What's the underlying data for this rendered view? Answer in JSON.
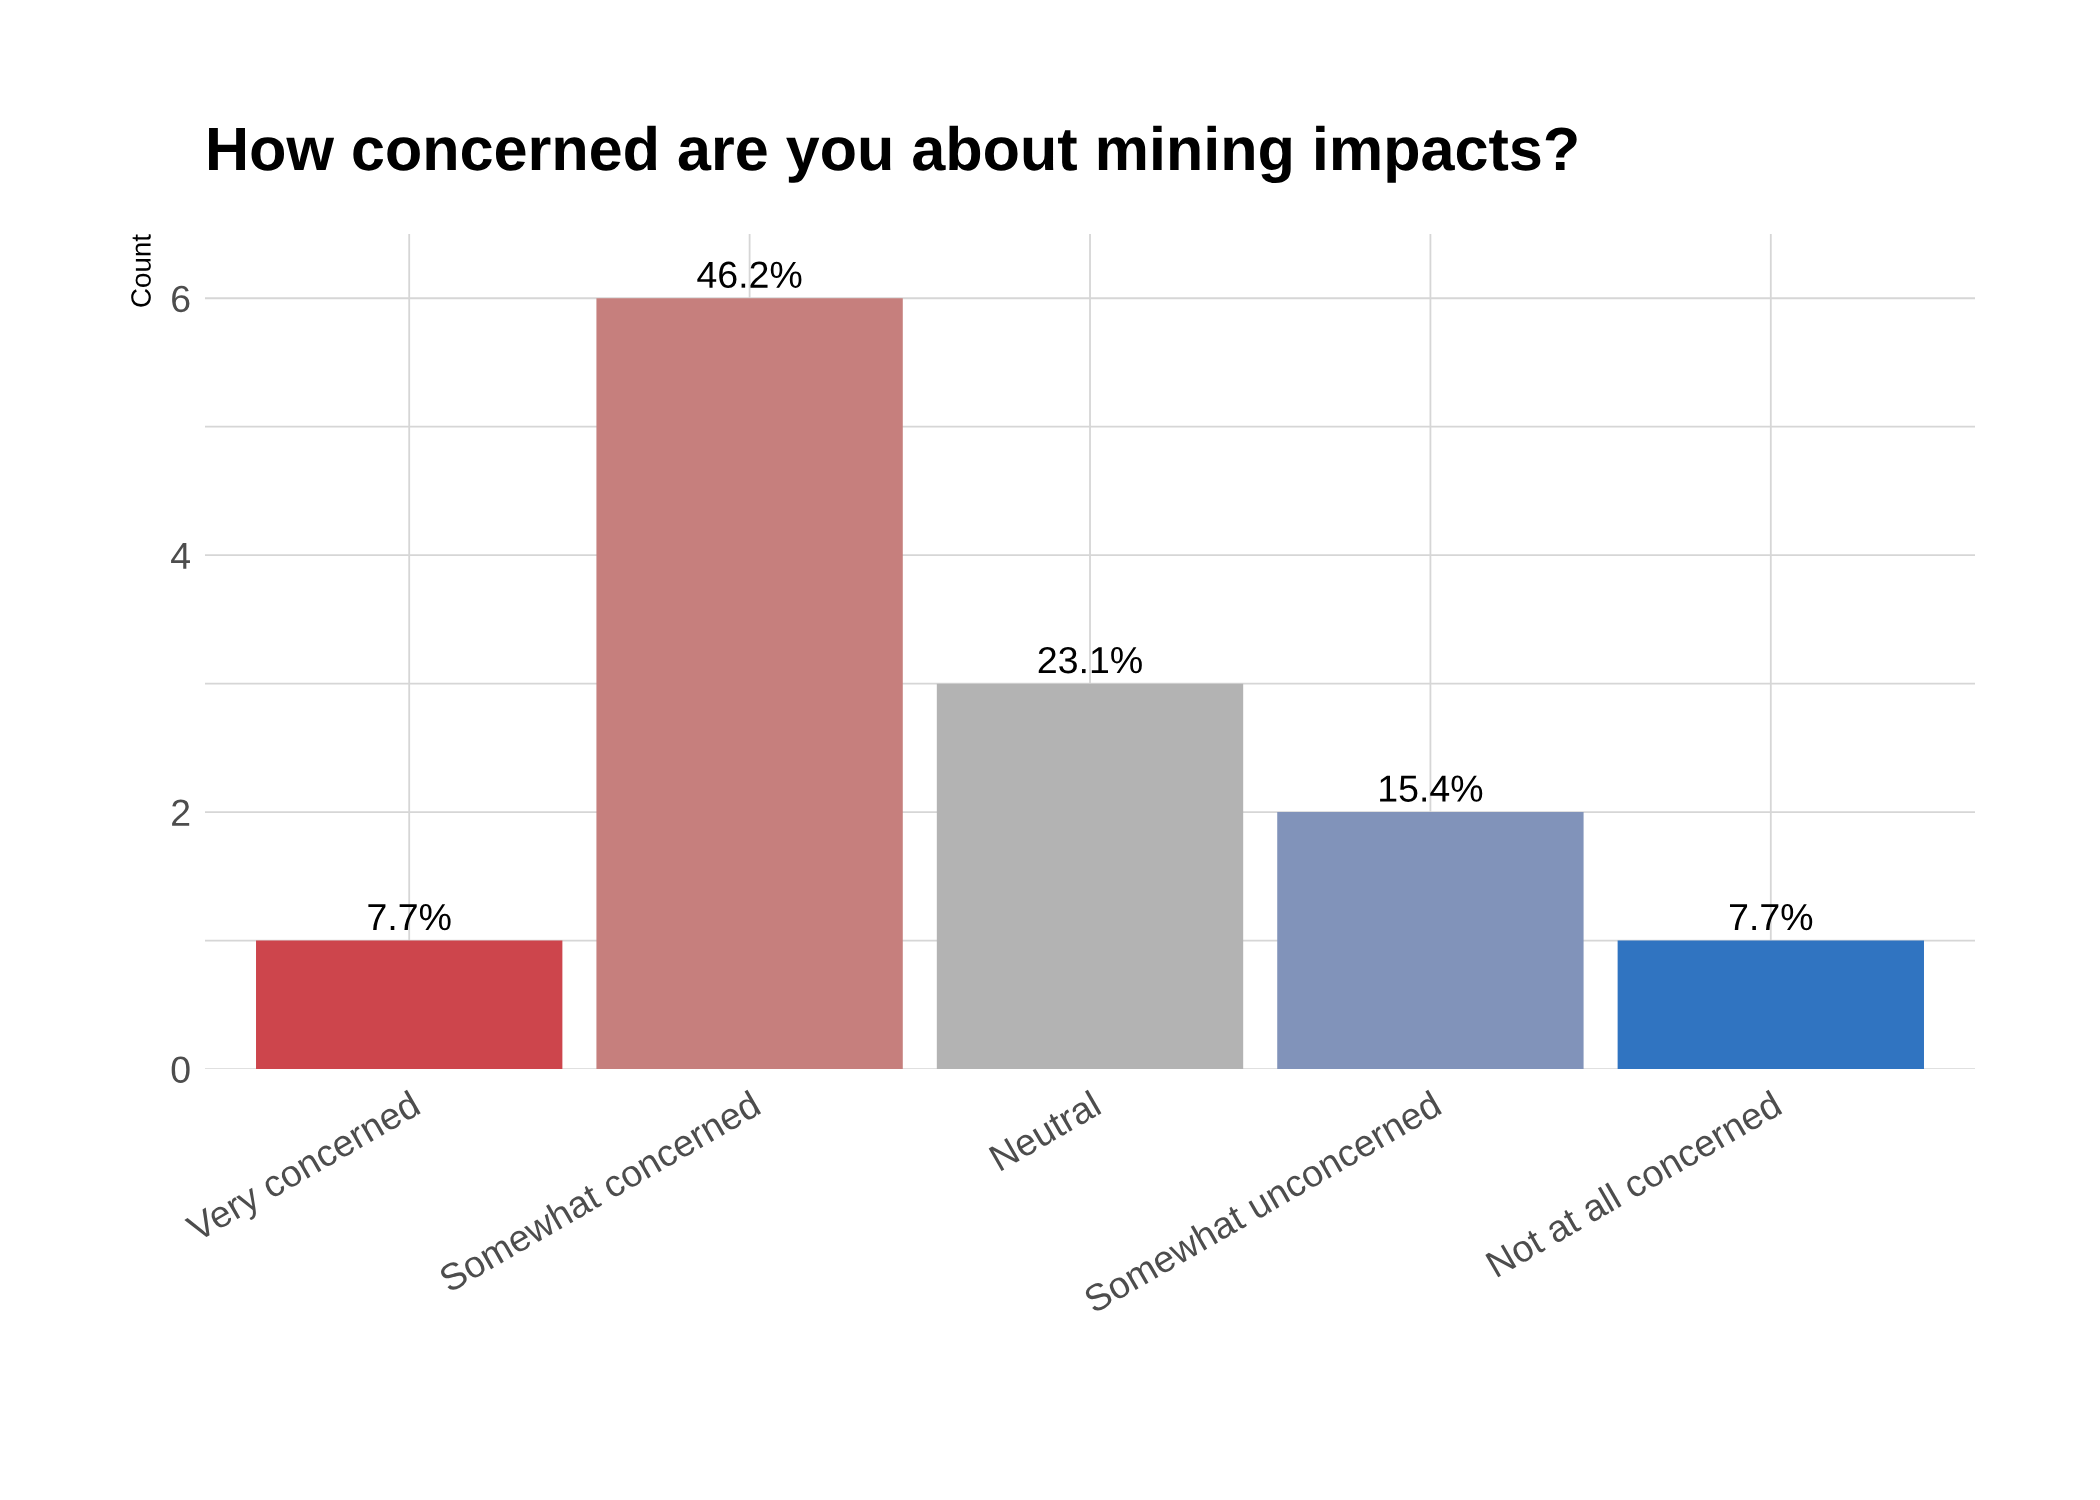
{
  "chart_data": {
    "type": "bar",
    "title": "How concerned are you about mining impacts?",
    "ylabel": "Count",
    "categories": [
      "Very concerned",
      "Somewhat concerned",
      "Neutral",
      "Somewhat unconcerned",
      "Not at all concerned"
    ],
    "values": [
      1,
      6,
      3,
      2,
      1
    ],
    "colors": [
      "#cd454c",
      "#c67f7d",
      "#b3b3b3",
      "#8193ba",
      "#3074c1"
    ],
    "annotations": [
      {
        "text": "7.7%",
        "x": "Very concerned",
        "y": 1
      },
      {
        "text": "46.2%",
        "x": "Somewhat concerned",
        "y": 6
      },
      {
        "text": "23.1%",
        "x": "Neutral",
        "y": 3
      },
      {
        "text": "15.4%",
        "x": "Somewhat unconcerned",
        "y": 2
      },
      {
        "text": "7.7%",
        "x": "Not at all concerned",
        "y": 1
      }
    ],
    "ylim": [
      0,
      6.5
    ],
    "yticks": [
      0,
      {
        "value": 1,
        "label": null
      },
      2,
      {
        "value": 3,
        "label": null
      },
      4,
      {
        "value": 5,
        "label": null
      },
      6
    ],
    "grid": true
  }
}
